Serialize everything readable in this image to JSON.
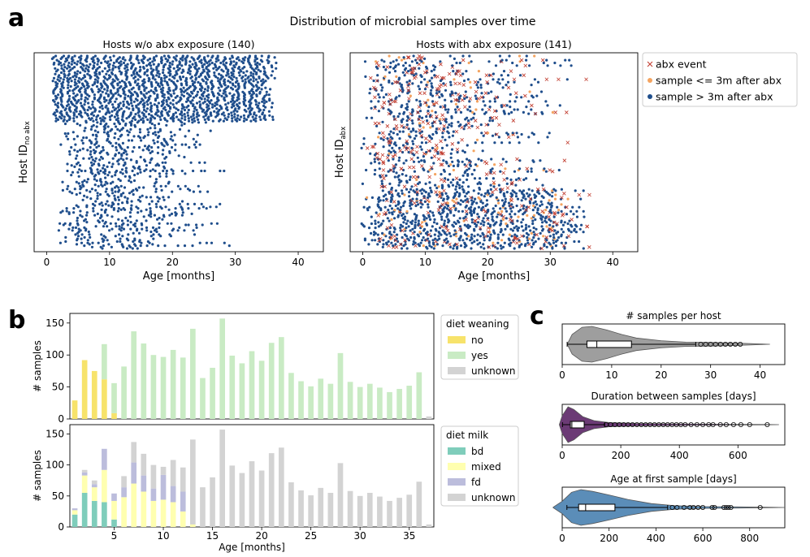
{
  "panel_labels": {
    "a": "a",
    "b": "b",
    "c": "c"
  },
  "colors": {
    "sample_late": "#1f4e8c",
    "sample_early": "#f4a460",
    "abx_event": "#c0392b",
    "weaning_no": "#f7e36b",
    "weaning_yes": "#c9ebc4",
    "unknown": "#d3d3d3",
    "milk_bd": "#7fcdbb",
    "milk_mixed": "#ffffb0",
    "milk_fd": "#bcbddc",
    "violin_count": "#9e9e9e",
    "violin_duration": "#6b3a75",
    "violin_age": "#5b8db8"
  },
  "chart_data": [
    {
      "id": "scatter-no-abx",
      "type": "scatter",
      "suptitle": "Distribution of microbial samples over time",
      "title": "Hosts w/o abx exposure (140)",
      "xlabel": "Age [months]",
      "ylabel_main": "Host ID",
      "ylabel_sub": "no abx",
      "xlim": [
        -2,
        44
      ],
      "xticks": [
        0,
        10,
        20,
        30,
        40
      ],
      "n_hosts": 140,
      "max_age": 36.5,
      "legend": [],
      "series": [
        {
          "name": "sample >   3m after abx",
          "points_shown": "approx"
        }
      ]
    },
    {
      "id": "scatter-abx",
      "type": "scatter",
      "title": "Hosts with abx exposure (141)",
      "xlabel": "Age [months]",
      "ylabel_main": "Host ID",
      "ylabel_sub": "abx",
      "xlim": [
        -2,
        44
      ],
      "xticks": [
        0,
        10,
        20,
        30,
        40
      ],
      "n_hosts": 141,
      "max_age": 36.5,
      "legend": [
        "abx event",
        "sample <= 3m after abx",
        "sample >   3m after abx"
      ],
      "legend_position": "outside right"
    },
    {
      "id": "bar-weaning",
      "type": "bar",
      "stacked": true,
      "ylabel": "# samples",
      "ylim": [
        0,
        165
      ],
      "yticks": [
        0,
        50,
        100,
        150
      ],
      "legend_title": "diet weaning",
      "series_names": [
        "no",
        "yes",
        "unknown"
      ],
      "months": [
        1,
        2,
        3,
        4,
        5,
        6,
        7,
        8,
        9,
        10,
        11,
        12,
        13,
        14,
        15,
        16,
        17,
        18,
        19,
        20,
        21,
        22,
        23,
        24,
        25,
        26,
        27,
        28,
        29,
        30,
        31,
        32,
        33,
        34,
        35,
        36,
        37
      ],
      "series": [
        {
          "name": "no",
          "values": [
            29,
            92,
            75,
            62,
            9,
            0,
            0,
            0,
            0,
            0,
            0,
            0,
            0,
            0,
            0,
            0,
            0,
            0,
            0,
            0,
            0,
            0,
            0,
            0,
            0,
            0,
            0,
            0,
            0,
            0,
            0,
            0,
            0,
            0,
            0,
            0,
            0
          ]
        },
        {
          "name": "yes",
          "values": [
            0,
            0,
            0,
            55,
            47,
            82,
            137,
            118,
            100,
            97,
            108,
            96,
            141,
            64,
            80,
            157,
            99,
            87,
            106,
            91,
            119,
            128,
            72,
            59,
            51,
            63,
            55,
            103,
            58,
            50,
            55,
            49,
            42,
            47,
            52,
            73,
            0
          ]
        },
        {
          "name": "unknown",
          "values": [
            0,
            0,
            0,
            0,
            0,
            0,
            0,
            0,
            0,
            0,
            0,
            0,
            0,
            0,
            0,
            0,
            0,
            0,
            0,
            0,
            0,
            0,
            0,
            0,
            0,
            0,
            0,
            0,
            0,
            0,
            0,
            0,
            0,
            0,
            0,
            0,
            4
          ]
        }
      ]
    },
    {
      "id": "bar-milk",
      "type": "bar",
      "stacked": true,
      "xlabel": "Age [months]",
      "ylabel": "# samples",
      "ylim": [
        0,
        165
      ],
      "yticks": [
        0,
        50,
        100,
        150
      ],
      "xticks": [
        5,
        10,
        15,
        20,
        25,
        30,
        35
      ],
      "legend_title": "diet milk",
      "series_names": [
        "bd",
        "mixed",
        "fd",
        "unknown"
      ],
      "months": [
        1,
        2,
        3,
        4,
        5,
        6,
        7,
        8,
        9,
        10,
        11,
        12,
        13,
        14,
        15,
        16,
        17,
        18,
        19,
        20,
        21,
        22,
        23,
        24,
        25,
        26,
        27,
        28,
        29,
        30,
        31,
        32,
        33,
        34,
        35,
        36,
        37
      ],
      "series": [
        {
          "name": "bd",
          "values": [
            20,
            55,
            42,
            40,
            12,
            0,
            0,
            0,
            0,
            0,
            0,
            0,
            0,
            0,
            0,
            0,
            0,
            0,
            0,
            0,
            0,
            0,
            0,
            0,
            0,
            0,
            0,
            0,
            0,
            0,
            0,
            0,
            0,
            0,
            0,
            0,
            0
          ]
        },
        {
          "name": "mixed",
          "values": [
            7,
            28,
            22,
            52,
            30,
            48,
            70,
            57,
            42,
            44,
            40,
            25,
            4,
            0,
            0,
            0,
            0,
            0,
            0,
            0,
            0,
            0,
            0,
            0,
            0,
            0,
            0,
            0,
            0,
            0,
            0,
            0,
            0,
            0,
            0,
            0,
            0
          ]
        },
        {
          "name": "fd",
          "values": [
            3,
            5,
            5,
            34,
            12,
            16,
            34,
            26,
            20,
            40,
            26,
            32,
            0,
            0,
            0,
            0,
            0,
            0,
            0,
            0,
            0,
            0,
            0,
            0,
            0,
            0,
            0,
            0,
            0,
            0,
            0,
            0,
            0,
            0,
            0,
            0,
            0
          ]
        },
        {
          "name": "unknown",
          "values": [
            0,
            4,
            6,
            0,
            0,
            18,
            33,
            35,
            38,
            13,
            42,
            39,
            137,
            64,
            80,
            157,
            99,
            87,
            106,
            91,
            119,
            128,
            72,
            59,
            51,
            63,
            55,
            103,
            58,
            50,
            55,
            49,
            42,
            47,
            52,
            73,
            4
          ]
        }
      ]
    },
    {
      "id": "violin-count",
      "type": "violin",
      "title": "# samples per host",
      "xlim": [
        0,
        45
      ],
      "xticks": [
        0,
        10,
        20,
        30,
        40
      ],
      "box": {
        "whisker_low": 1,
        "q1": 5,
        "median": 7,
        "q3": 14,
        "whisker_high": 27
      },
      "outliers": [
        28,
        29,
        30,
        31,
        32,
        33,
        34,
        35,
        36
      ]
    },
    {
      "id": "violin-duration",
      "type": "violin",
      "title": "Duration between samples [days]",
      "xlim": [
        0,
        760
      ],
      "xticks": [
        0,
        200,
        400,
        600
      ],
      "box": {
        "whisker_low": 1,
        "q1": 28,
        "median": 33,
        "q3": 75,
        "whisker_high": 145
      },
      "outliers": [
        150,
        165,
        180,
        195,
        210,
        225,
        240,
        255,
        270,
        285,
        300,
        315,
        330,
        345,
        360,
        375,
        390,
        405,
        420,
        440,
        460,
        480,
        500,
        515,
        540,
        560,
        585,
        610,
        640,
        700
      ]
    },
    {
      "id": "violin-age",
      "type": "violin",
      "title": "Age at first sample [days]",
      "xlim": [
        0,
        950
      ],
      "xticks": [
        0,
        200,
        400,
        600,
        800
      ],
      "box": {
        "whisker_low": 20,
        "q1": 70,
        "median": 100,
        "q3": 225,
        "whisker_high": 450
      },
      "outliers": [
        470,
        490,
        520,
        545,
        560,
        580,
        600,
        640,
        650,
        690,
        700,
        710,
        720,
        845
      ]
    }
  ]
}
